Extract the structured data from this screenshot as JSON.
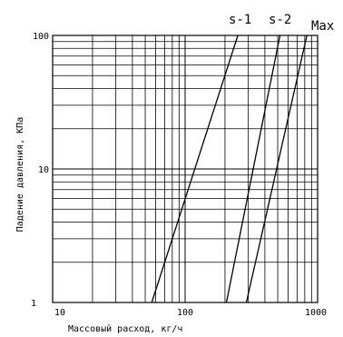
{
  "chart_data": {
    "type": "line",
    "xscale": "log",
    "yscale": "log",
    "xlim": [
      10,
      1000
    ],
    "ylim": [
      1,
      100
    ],
    "grid": true,
    "xlabel": "Массовый расход, кг/ч",
    "ylabel": "Падение давления, КПа",
    "x_ticks": [
      "10",
      "100",
      "1000"
    ],
    "y_ticks": [
      "1",
      "10",
      "100"
    ],
    "series": [
      {
        "name": "s-1",
        "x": [
          56,
          250
        ],
        "y": [
          1,
          100
        ]
      },
      {
        "name": "s-2",
        "x": [
          205,
          520
        ],
        "y": [
          1,
          100
        ]
      },
      {
        "name": "Max",
        "x": [
          290,
          830
        ],
        "y": [
          1,
          100
        ]
      }
    ]
  }
}
